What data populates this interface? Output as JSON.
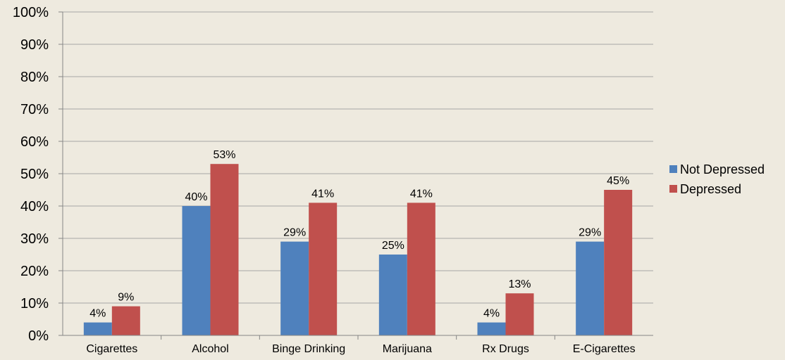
{
  "chart_data": {
    "type": "bar",
    "categories": [
      "Cigarettes",
      "Alcohol",
      "Binge Drinking",
      "Marijuana",
      "Rx Drugs",
      "E-Cigarettes"
    ],
    "series": [
      {
        "name": "Not Depressed",
        "color": "#4F81BD",
        "values": [
          4,
          40,
          29,
          25,
          4,
          29
        ],
        "labels": [
          "4%",
          "40%",
          "29%",
          "25%",
          "4%",
          "29%"
        ]
      },
      {
        "name": "Depressed",
        "color": "#C0504D",
        "values": [
          9,
          53,
          41,
          41,
          13,
          45
        ],
        "labels": [
          "9%",
          "53%",
          "41%",
          "41%",
          "13%",
          "45%"
        ]
      }
    ],
    "y_ticks": [
      "0%",
      "10%",
      "20%",
      "30%",
      "40%",
      "50%",
      "60%",
      "70%",
      "80%",
      "90%",
      "100%"
    ],
    "ylim": [
      0,
      100
    ],
    "grid": true,
    "legend_position": "right"
  }
}
